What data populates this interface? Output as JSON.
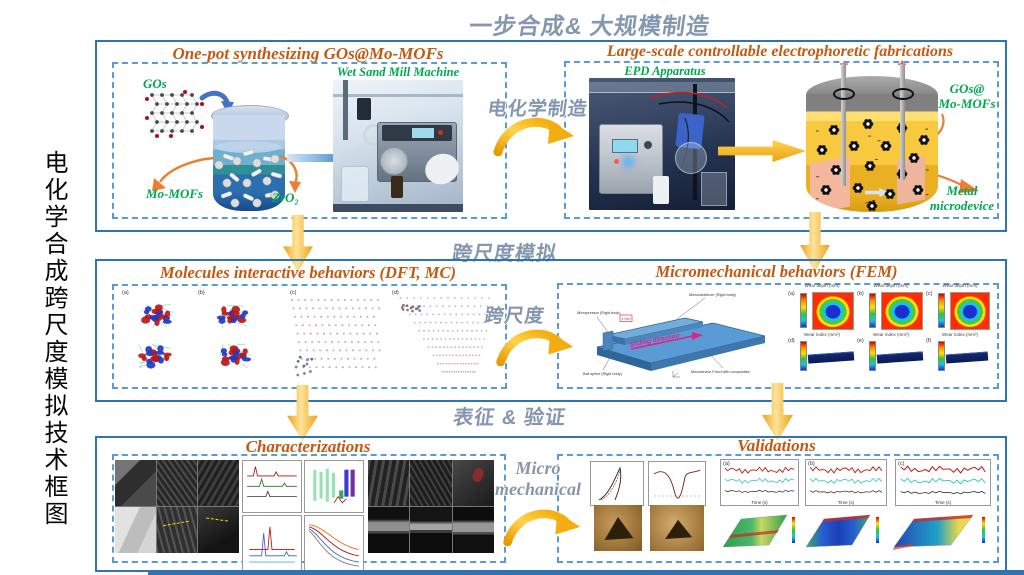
{
  "left_title": "电化学合成跨尺度模拟技术框图",
  "top": {
    "section_title": "一步合成& 大规模制造",
    "connector": "电化学制造",
    "onepot": {
      "title": "One-pot synthesizing GOs@Mo-MOFs",
      "gos": "GOs",
      "mo_mofs": "Mo-MOFs",
      "zro2": "ZrO₂",
      "machine": "Wet Sand Mill Machine"
    },
    "epd": {
      "title": "Large-scale controllable electrophoretic fabrications",
      "apparatus": "EPD Apparatus",
      "minus": "−",
      "plus": "+",
      "gos_line1": "GOs@",
      "gos_line2": "Mo-MOFs",
      "metal_line1": "Metal",
      "metal_line2": "microdevice"
    }
  },
  "middle": {
    "section_title": "跨尺度模拟",
    "connector": "跨尺度",
    "dft": {
      "title": "Molecules interactive behaviors (DFT, MC)",
      "tags": [
        "(a)",
        "(b)",
        "(c)",
        "(d)"
      ]
    },
    "fem": {
      "title": "Micromechanical behaviors (FEM)",
      "labels": {
        "cantilever": "Microcantilever (Rigid body)",
        "pressor": "Micropressor (Rigid body)",
        "ball": "Ball spline (Rigid body)",
        "device": "Microdevice Fixed with composites",
        "sliding": "Sliding direction",
        "scale": "1 mm"
      },
      "contours": [
        {
          "tag": "(a)",
          "title": "Wear depth (mm)"
        },
        {
          "tag": "(b)",
          "title": "Wear depth (mm)"
        },
        {
          "tag": "(c)",
          "title": "Wear depth (mm)"
        },
        {
          "tag": "(d)",
          "title": "Wear index (mm²)"
        },
        {
          "tag": "(e)",
          "title": "Wear index (mm²)"
        },
        {
          "tag": "(f)",
          "title": "Wear index (mm²)"
        }
      ]
    }
  },
  "bottom": {
    "section_title": "表征 & 验证",
    "connector_line1": "Micro",
    "connector_line2": "mechanical",
    "characterizations": {
      "title": "Characterizations"
    },
    "validations": {
      "title": "Validations",
      "xlabel": "Time (s)",
      "tags": [
        "(a)",
        "(b)",
        "(c)"
      ]
    }
  }
}
